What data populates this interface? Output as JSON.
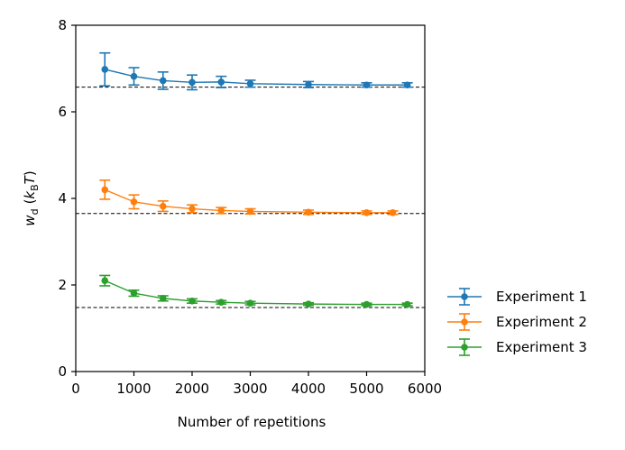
{
  "chart_data": {
    "type": "line",
    "xlabel": "Number of repetitions",
    "ylabel_main": "w",
    "ylabel_sub": "d",
    "ylabel_unit_open": "(",
    "ylabel_unit_k": "k",
    "ylabel_unit_sub": "B",
    "ylabel_unit_T": "T",
    "ylabel_unit_close": ")",
    "xlim": [
      0,
      6000
    ],
    "ylim": [
      0,
      8
    ],
    "x_ticks": [
      0,
      1000,
      2000,
      3000,
      4000,
      5000,
      6000
    ],
    "y_ticks": [
      0,
      2,
      4,
      6,
      8
    ],
    "grid": false,
    "legend_position": "right-bottom",
    "series": [
      {
        "name": "Experiment 1",
        "color": "#1f77b4",
        "x": [
          500,
          1000,
          1500,
          2000,
          2500,
          3000,
          4000,
          5000,
          5700
        ],
        "y": [
          6.98,
          6.82,
          6.72,
          6.68,
          6.69,
          6.65,
          6.63,
          6.62,
          6.62
        ],
        "err": [
          0.38,
          0.2,
          0.2,
          0.17,
          0.13,
          0.08,
          0.07,
          0.05,
          0.05
        ],
        "reference": 6.57
      },
      {
        "name": "Experiment 2",
        "color": "#ff7f0e",
        "x": [
          500,
          1000,
          1500,
          2000,
          2500,
          3000,
          4000,
          5000,
          5450
        ],
        "y": [
          4.2,
          3.92,
          3.82,
          3.76,
          3.72,
          3.7,
          3.68,
          3.67,
          3.67
        ],
        "err": [
          0.22,
          0.16,
          0.12,
          0.09,
          0.07,
          0.06,
          0.05,
          0.04,
          0.04
        ],
        "reference": 3.65
      },
      {
        "name": "Experiment 3",
        "color": "#2ca02c",
        "x": [
          500,
          1000,
          1500,
          2000,
          2500,
          3000,
          4000,
          5000,
          5700
        ],
        "y": [
          2.1,
          1.81,
          1.69,
          1.63,
          1.6,
          1.58,
          1.56,
          1.55,
          1.55
        ],
        "err": [
          0.12,
          0.07,
          0.06,
          0.05,
          0.04,
          0.04,
          0.03,
          0.03,
          0.03
        ],
        "reference": 1.48
      }
    ]
  }
}
